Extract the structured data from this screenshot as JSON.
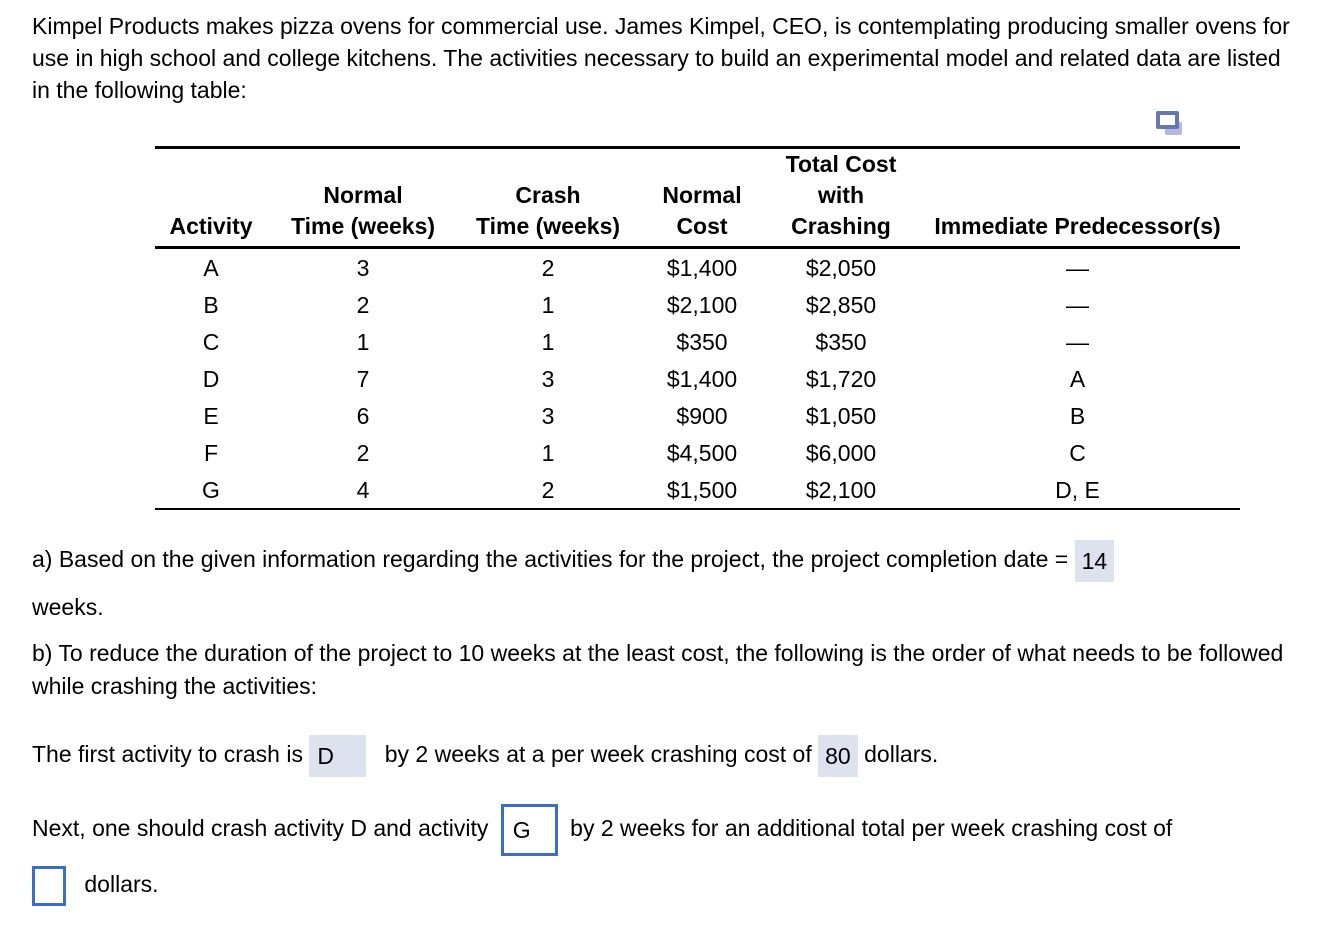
{
  "colors": {
    "answer_highlight": "#dde3ee",
    "answer_box_border": "#3d6cd1",
    "copy_icon_front": "#6675b5",
    "copy_icon_back": "#b3bbdc",
    "text": "#000000",
    "background": "#ffffff"
  },
  "intro": "Kimpel Products makes pizza ovens for commercial use. James Kimpel, CEO, is contemplating producing smaller ovens for use in high school and college kitchens. The activities necessary to build an experimental model and related data are listed in the following table:",
  "icons": {
    "copy": "copy-icon"
  },
  "table": {
    "headers": {
      "activity": "Activity",
      "normal_time": "Normal\nTime (weeks)",
      "crash_time": "Crash\nTime (weeks)",
      "normal_cost": "Normal\nCost",
      "total_cost": "Total Cost\nwith\nCrashing",
      "predecessors": "Immediate Predecessor(s)"
    },
    "rows": [
      [
        "A",
        "3",
        "2",
        "$1,400",
        "$2,050",
        "—"
      ],
      [
        "B",
        "2",
        "1",
        "$2,100",
        "$2,850",
        "—"
      ],
      [
        "C",
        "1",
        "1",
        "$350",
        "$350",
        "—"
      ],
      [
        "D",
        "7",
        "3",
        "$1,400",
        "$1,720",
        "A"
      ],
      [
        "E",
        "6",
        "3",
        "$900",
        "$1,050",
        "B"
      ],
      [
        "F",
        "2",
        "1",
        "$4,500",
        "$6,000",
        "C"
      ],
      [
        "G",
        "4",
        "2",
        "$1,500",
        "$2,100",
        "D, E"
      ]
    ]
  },
  "part_a": {
    "text_before": "a) Based on the given information regarding the activities for the project, the project completion date =",
    "answer": "14",
    "text_after": "weeks."
  },
  "part_b": {
    "intro": "b) To reduce the duration of the project to 10 weeks at the least cost, the following is the order of what needs to be followed while crashing the activities:",
    "line1": {
      "before": "The first activity to crash is",
      "answer_activity": "D",
      "middle": "by 2 weeks at a per week crashing cost of",
      "answer_cost": "80",
      "after": "dollars."
    },
    "line2": {
      "before": "Next, one should crash activity D and activity",
      "answer_activity": "G",
      "after": "by 2 weeks for an additional total per week crashing cost of",
      "tail": "dollars."
    }
  }
}
